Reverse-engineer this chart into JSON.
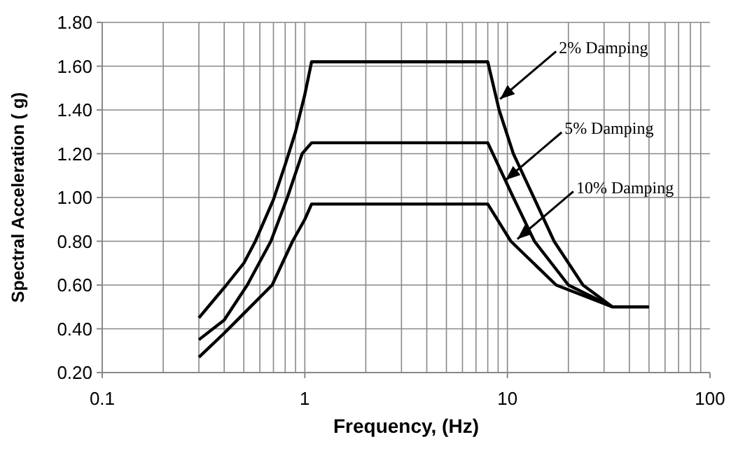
{
  "chart_data": {
    "type": "line",
    "xlabel": "Frequency, (Hz)",
    "ylabel": "Spectral Acceleration ( g)",
    "log": "x",
    "grid": true,
    "marker": "none",
    "line_style": "solid",
    "xlim": [
      0.1,
      100
    ],
    "xticks": [
      0.1,
      1,
      10,
      100
    ],
    "ylim": [
      0.2,
      1.8
    ],
    "yticks": [
      {
        "value": 0.2,
        "label": "0.20"
      },
      {
        "value": 0.4,
        "label": "0.40"
      },
      {
        "value": 0.6,
        "label": "0.60"
      },
      {
        "value": 0.8,
        "label": "0.80"
      },
      {
        "value": 1.0,
        "label": "1.00"
      },
      {
        "value": 1.2,
        "label": "1.20"
      },
      {
        "value": 1.4,
        "label": "1.40"
      },
      {
        "value": 1.6,
        "label": "1.60"
      },
      {
        "value": 1.8,
        "label": "1.80"
      }
    ],
    "series": [
      {
        "color": "#000000",
        "x": [
          0.3,
          0.41,
          0.5,
          0.57,
          0.7,
          0.8,
          0.9,
          1.0,
          1.08,
          8,
          9.1,
          10.7,
          13.5,
          17,
          23.6,
          33,
          50
        ],
        "values": [
          0.45,
          0.6,
          0.7,
          0.8,
          0.99,
          1.15,
          1.3,
          1.47,
          1.62,
          1.62,
          1.4,
          1.2,
          1.0,
          0.8,
          0.6,
          0.5,
          0.5
        ]
      },
      {
        "color": "#000000",
        "x": [
          0.3,
          0.4,
          0.52,
          0.68,
          0.82,
          0.97,
          1.08,
          8,
          10.7,
          13.6,
          20,
          33
        ],
        "values": [
          0.35,
          0.44,
          0.6,
          0.8,
          1.0,
          1.2,
          1.25,
          1.25,
          1.0,
          0.8,
          0.6,
          0.5
        ]
      },
      {
        "color": "#000000",
        "x": [
          0.3,
          0.4,
          0.5,
          0.69,
          0.87,
          1.0,
          1.08,
          8,
          10.4,
          17.4,
          33
        ],
        "values": [
          0.27,
          0.38,
          0.47,
          0.6,
          0.8,
          0.9,
          0.97,
          0.97,
          0.8,
          0.6,
          0.5
        ]
      }
    ],
    "annotations": [
      {
        "text": "2% Damping",
        "x": 9.2,
        "y": 1.45
      },
      {
        "text": "5% Damping",
        "x": 9.8,
        "y": 1.08
      },
      {
        "text": "10% Damping",
        "x": 11.2,
        "y": 0.81
      }
    ]
  }
}
